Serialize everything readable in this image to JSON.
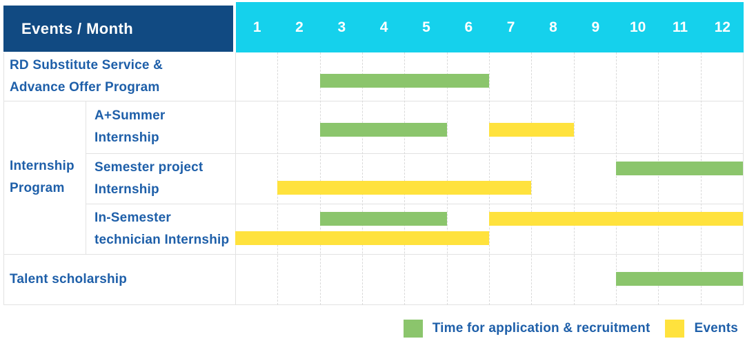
{
  "colors": {
    "navy": "#114A82",
    "cyan": "#15D1EC",
    "green": "#8BC56C",
    "yellow": "#FFE23D",
    "label_blue": "#1E5FA9",
    "grid_solid": "#E2E2E2",
    "grid_dashed": "#D9D9D9"
  },
  "header": {
    "title": "Events / Month",
    "months": [
      "1",
      "2",
      "3",
      "4",
      "5",
      "6",
      "7",
      "8",
      "9",
      "10",
      "11",
      "12"
    ]
  },
  "group_cell": {
    "label": "Internship\nProgram"
  },
  "legend": {
    "items": [
      {
        "label": "Time for application & recruitment",
        "color": "#8BC56C",
        "kind": "application"
      },
      {
        "label": "Events",
        "color": "#FFE23D",
        "kind": "events"
      }
    ]
  },
  "chart_data": {
    "type": "bar",
    "subtype": "gantt-schedule",
    "title": "Events / Month",
    "xlabel": "Month",
    "x_categories": [
      "1",
      "2",
      "3",
      "4",
      "5",
      "6",
      "7",
      "8",
      "9",
      "10",
      "11",
      "12"
    ],
    "x_range": [
      1,
      12
    ],
    "grid": "dashed vertical month separators, solid row separators",
    "legend_position": "bottom-right",
    "series_kinds": [
      {
        "kind": "application",
        "label": "Time for application & recruitment",
        "color": "#8BC56C"
      },
      {
        "kind": "events",
        "label": "Events",
        "color": "#FFE23D"
      }
    ],
    "rows": [
      {
        "label": "RD Substitute Service &\nAdvance Offer Program",
        "group": "",
        "bars": [
          {
            "kind": "application",
            "start_month": 3,
            "end_month": 6,
            "band": "single"
          }
        ]
      },
      {
        "label": "A+Summer\nInternship",
        "group": "Internship Program",
        "bars": [
          {
            "kind": "application",
            "start_month": 3,
            "end_month": 5,
            "band": "single"
          },
          {
            "kind": "events",
            "start_month": 7,
            "end_month": 8,
            "band": "single"
          }
        ]
      },
      {
        "label": "Semester project\nInternship",
        "group": "Internship Program",
        "bars": [
          {
            "kind": "application",
            "start_month": 10,
            "end_month": 12,
            "band": "upper"
          },
          {
            "kind": "events",
            "start_month": 2,
            "end_month": 7,
            "band": "lower"
          }
        ]
      },
      {
        "label": "In-Semester\ntechnician Internship",
        "group": "Internship Program",
        "bars": [
          {
            "kind": "application",
            "start_month": 3,
            "end_month": 5,
            "band": "upper"
          },
          {
            "kind": "events",
            "start_month": 7,
            "end_month": 12,
            "band": "upper"
          },
          {
            "kind": "events",
            "start_month": 1,
            "end_month": 6,
            "band": "lower"
          }
        ]
      },
      {
        "label": "Talent scholarship",
        "group": "",
        "bars": [
          {
            "kind": "application",
            "start_month": 10,
            "end_month": 12,
            "band": "single"
          }
        ]
      }
    ]
  }
}
